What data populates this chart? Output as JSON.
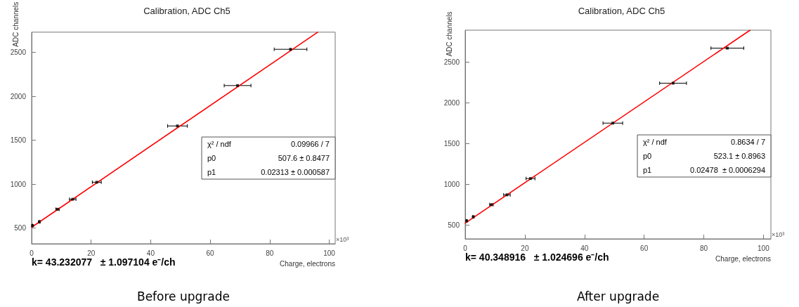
{
  "chart_data": [
    {
      "type": "scatter",
      "title": "Calibration, ADC Ch5",
      "xlabel": "Charge, electrons",
      "ylabel": "ADC channels",
      "xlim": [
        0,
        102
      ],
      "xticks": [
        0,
        20,
        40,
        60,
        80,
        100
      ],
      "ylim": [
        320,
        2730
      ],
      "yticks": [
        500,
        1000,
        1500,
        2000,
        2500
      ],
      "grid": false,
      "series": [
        {
          "marker": "square",
          "color": "#000000",
          "x": [
            0.3,
            2.6,
            8.7,
            13.8,
            21.9,
            49.0,
            69.2,
            87.0
          ],
          "values": [
            527,
            570,
            713,
            827,
            1021,
            1662,
            2122,
            2535
          ],
          "xerrors": [
            0.1,
            0.2,
            0.6,
            1.1,
            1.5,
            3.3,
            4.5,
            5.5
          ]
        },
        {
          "type": "line",
          "marker": "none",
          "color": "#ff0000",
          "x": [
            0,
            96.1
          ],
          "values": [
            508,
            2730
          ]
        }
      ],
      "annotations": [
        "χ² / ndf",
        "0.09966 / 7",
        "p0",
        "507.6 ± 0.8477",
        "p1",
        "0.02313 ± 0.000587",
        "×10³",
        "k= 43.232077   ± 1.097104 e⁻/ch",
        "Before upgrade"
      ]
    },
    {
      "type": "scatter",
      "title": "Calibration, ADC Ch5",
      "xlabel": "Charge, electrons",
      "ylabel": "ADC channels",
      "xlim": [
        0,
        102.5
      ],
      "xticks": [
        0,
        20,
        40,
        60,
        80,
        100
      ],
      "ylim": [
        330,
        2890
      ],
      "yticks": [
        500,
        1000,
        1500,
        2000,
        2500
      ],
      "grid": false,
      "series": [
        {
          "marker": "square",
          "color": "#000000",
          "x": [
            0.5,
            2.7,
            8.8,
            14.0,
            21.9,
            49.5,
            69.7,
            87.9
          ],
          "values": [
            550,
            600,
            750,
            870,
            1070,
            1750,
            2240,
            2670
          ],
          "xerrors": [
            0.1,
            0.2,
            0.6,
            1.1,
            1.5,
            3.3,
            4.5,
            5.5
          ]
        },
        {
          "type": "line",
          "marker": "none",
          "color": "#ff0000",
          "x": [
            0,
            95.5
          ],
          "values": [
            523,
            2890
          ]
        }
      ],
      "annotations": [
        "χ² / ndf",
        "0.8634 / 7",
        "p0",
        "523.1 ± 0.8963",
        "p1",
        "0.02478  ± 0.0006294",
        "×10³",
        "k= 40.348916   ± 1.024696 e⁻/ch",
        "After upgrade"
      ]
    }
  ]
}
